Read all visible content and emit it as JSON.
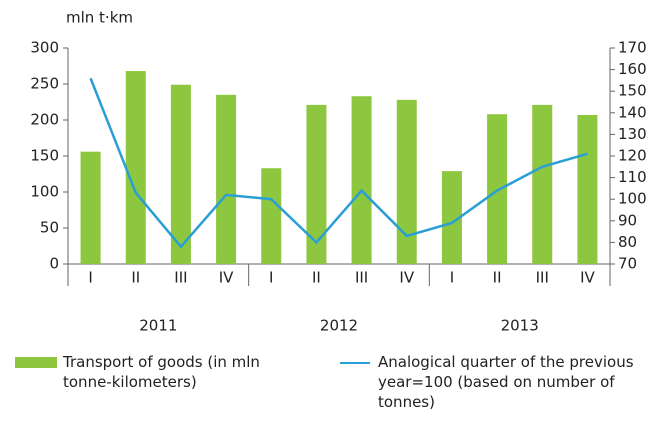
{
  "chart_data": {
    "type": "bar_line",
    "y_label": "mln t·km",
    "categories": [
      "I",
      "II",
      "III",
      "IV",
      "I",
      "II",
      "III",
      "IV",
      "I",
      "II",
      "III",
      "IV"
    ],
    "groups": [
      "2011",
      "2012",
      "2013"
    ],
    "series": [
      {
        "name": "Transport of goods (in mln tonne-kilometers)",
        "color": "#8dc63f",
        "kind": "bar",
        "axis": "y",
        "values": [
          156,
          268,
          249,
          235,
          133,
          221,
          233,
          228,
          129,
          208,
          221,
          207
        ]
      },
      {
        "name": "Analogical quarter of the previous year=100 (based on number of tonnes)",
        "color": "#2a9fd6",
        "kind": "line",
        "axis": "y2",
        "values": [
          156,
          103,
          78,
          102,
          100,
          80,
          104,
          83,
          89,
          104,
          115,
          121
        ]
      }
    ],
    "ylim": [
      0,
      300
    ],
    "yticks": [
      0,
      50,
      100,
      150,
      200,
      250,
      300
    ],
    "y2lim": [
      70,
      170
    ],
    "y2ticks": [
      70,
      80,
      90,
      100,
      110,
      120,
      130,
      140,
      150,
      160,
      170
    ],
    "grid": false
  }
}
